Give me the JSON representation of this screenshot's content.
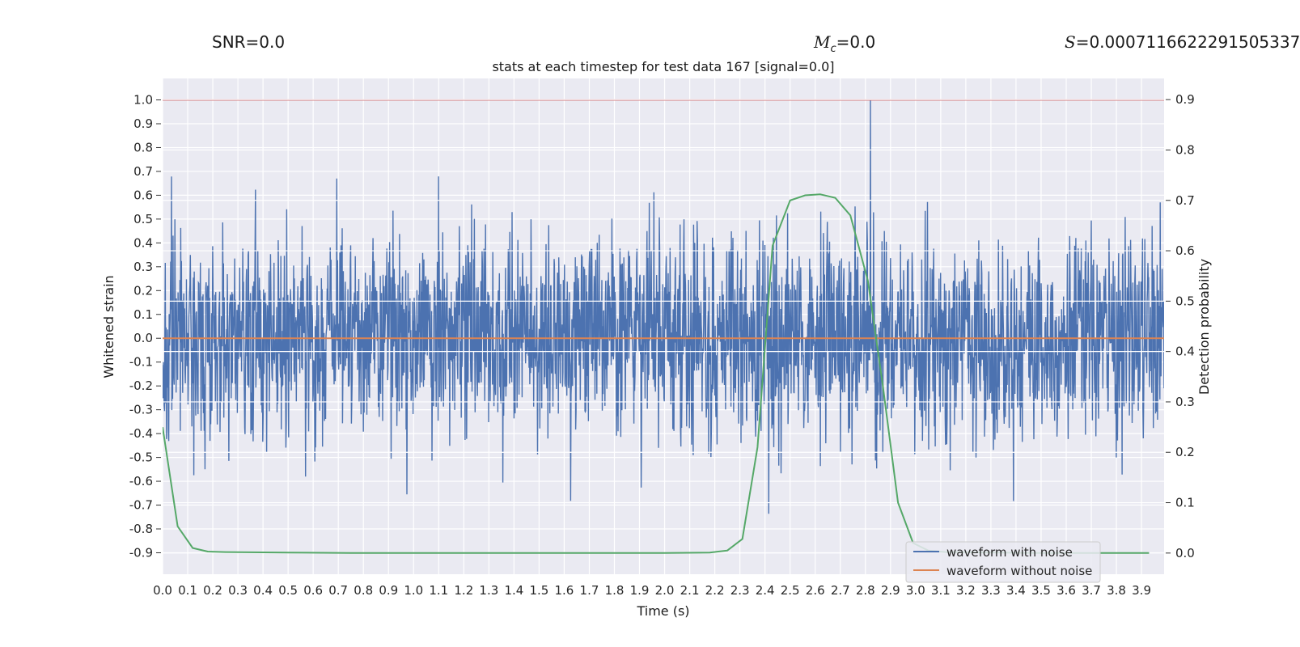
{
  "header": {
    "snr_text": "SNR=0.0",
    "mc_symbol": "M",
    "mc_sub": "c",
    "mc_value": "=0.0",
    "s_symbol": "S",
    "s_value": "=0.0007116622291505337"
  },
  "chart_data": {
    "type": "line",
    "title": "stats at each timestep for test data 167 [signal=0.0]",
    "xlabel": "Time (s)",
    "ylabel": "Whitened strain",
    "y2label": "Detection probability",
    "xlim": [
      0.0,
      3.99
    ],
    "ylim": [
      -0.99,
      1.09
    ],
    "y2lim": [
      -0.042,
      0.942
    ],
    "x_ticks": [
      "0.0",
      "0.1",
      "0.2",
      "0.3",
      "0.4",
      "0.5",
      "0.6",
      "0.7",
      "0.8",
      "0.9",
      "1.0",
      "1.1",
      "1.2",
      "1.3",
      "1.4",
      "1.5",
      "1.6",
      "1.7",
      "1.8",
      "1.9",
      "2.0",
      "2.1",
      "2.2",
      "2.3",
      "2.4",
      "2.5",
      "2.6",
      "2.7",
      "2.8",
      "2.9",
      "3.0",
      "3.1",
      "3.2",
      "3.3",
      "3.4",
      "3.5",
      "3.6",
      "3.7",
      "3.8",
      "3.9"
    ],
    "y_ticks": [
      "1.0",
      "0.9",
      "0.8",
      "0.7",
      "0.6",
      "0.5",
      "0.4",
      "0.3",
      "0.2",
      "0.1",
      "0.0",
      "-0.1",
      "-0.2",
      "-0.3",
      "-0.4",
      "-0.5",
      "-0.6",
      "-0.7",
      "-0.8",
      "-0.9"
    ],
    "y2_ticks": [
      "0.9",
      "0.8",
      "0.7",
      "0.6",
      "0.5",
      "0.4",
      "0.3",
      "0.2",
      "0.1",
      "0.0"
    ],
    "grid": true,
    "legend_position": "lower-right",
    "threshold_line": {
      "y": 1.0,
      "color": "#c44e52"
    },
    "series": [
      {
        "name": "waveform with noise",
        "color": "#4c72b0",
        "axis": "left",
        "samples": 4096,
        "amplitude_range": [
          -0.9,
          1.0
        ],
        "note_peak": {
          "x": 2.82,
          "y": 1.0
        }
      },
      {
        "name": "waveform without noise",
        "color": "#dd8452",
        "axis": "left",
        "x": [
          0.0,
          3.99
        ],
        "y": [
          0.0,
          0.0
        ]
      },
      {
        "name": "",
        "color": "#55a868",
        "axis": "right",
        "x": [
          0.0,
          0.06,
          0.12,
          0.18,
          0.25,
          0.5,
          0.75,
          1.0,
          1.5,
          2.0,
          2.18,
          2.25,
          2.31,
          2.37,
          2.43,
          2.5,
          2.56,
          2.62,
          2.68,
          2.74,
          2.81,
          2.87,
          2.93,
          2.99,
          3.05,
          3.12,
          3.5,
          3.93
        ],
        "y": [
          0.25,
          0.053,
          0.01,
          0.003,
          0.002,
          0.001,
          0.0,
          0.0,
          0.0,
          0.0,
          0.001,
          0.005,
          0.028,
          0.21,
          0.61,
          0.7,
          0.71,
          0.712,
          0.705,
          0.67,
          0.54,
          0.33,
          0.1,
          0.02,
          0.005,
          0.002,
          0.0,
          0.0
        ]
      }
    ]
  }
}
